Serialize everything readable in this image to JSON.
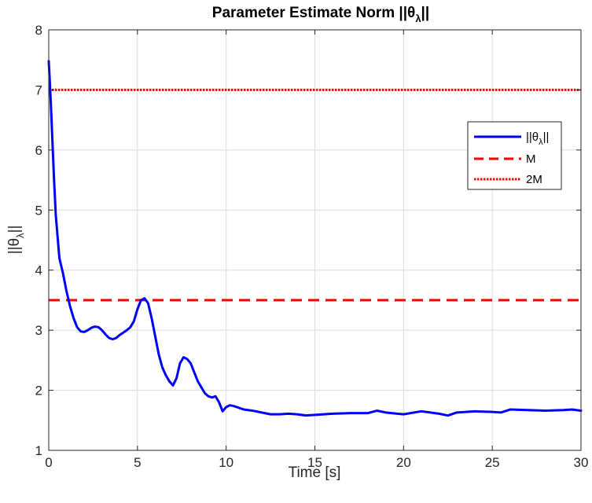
{
  "chart_data": {
    "type": "line",
    "title_main": "Parameter Estimate Norm ||θ",
    "title_sub": "λ",
    "title_end": "||",
    "xlabel": "Time [s]",
    "ylabel_main": "||θ",
    "ylabel_sub": "λ",
    "ylabel_end": "||",
    "xlim": [
      0,
      30
    ],
    "ylim": [
      1,
      8
    ],
    "xticks": [
      0,
      5,
      10,
      15,
      20,
      25,
      30
    ],
    "yticks": [
      1,
      2,
      3,
      4,
      5,
      6,
      7,
      8
    ],
    "grid": true,
    "legend_position": "upper-right",
    "series": [
      {
        "name_main": "||θ",
        "name_sub": "λ",
        "name_end": "||",
        "style": "solid",
        "color": "#0000ff",
        "x": [
          0,
          0.1,
          0.2,
          0.3,
          0.4,
          0.6,
          0.8,
          1.0,
          1.2,
          1.4,
          1.6,
          1.8,
          2.0,
          2.2,
          2.4,
          2.6,
          2.8,
          3.0,
          3.2,
          3.4,
          3.6,
          3.8,
          4.0,
          4.2,
          4.4,
          4.6,
          4.8,
          5.0,
          5.2,
          5.4,
          5.6,
          5.8,
          6.0,
          6.2,
          6.4,
          6.6,
          6.8,
          7.0,
          7.2,
          7.4,
          7.6,
          7.8,
          8.0,
          8.2,
          8.4,
          8.6,
          8.8,
          9.0,
          9.2,
          9.4,
          9.6,
          9.8,
          10.0,
          10.2,
          10.4,
          10.6,
          10.8,
          11.0,
          11.5,
          12.0,
          12.5,
          13.0,
          13.5,
          14.0,
          14.5,
          15.0,
          16.0,
          17.0,
          18.0,
          18.5,
          19.0,
          20.0,
          21.0,
          22.0,
          22.5,
          23.0,
          24.0,
          25.0,
          25.5,
          26.0,
          27.0,
          28.0,
          29.0,
          29.5,
          30.0
        ],
        "y": [
          7.48,
          6.9,
          6.2,
          5.5,
          4.9,
          4.2,
          3.95,
          3.65,
          3.4,
          3.2,
          3.05,
          2.98,
          2.97,
          3.0,
          3.04,
          3.06,
          3.05,
          3.0,
          2.93,
          2.87,
          2.85,
          2.87,
          2.92,
          2.96,
          3.0,
          3.05,
          3.15,
          3.35,
          3.5,
          3.53,
          3.45,
          3.2,
          2.9,
          2.6,
          2.38,
          2.25,
          2.15,
          2.08,
          2.2,
          2.45,
          2.55,
          2.52,
          2.45,
          2.3,
          2.15,
          2.05,
          1.95,
          1.9,
          1.88,
          1.9,
          1.8,
          1.65,
          1.72,
          1.75,
          1.74,
          1.72,
          1.7,
          1.68,
          1.66,
          1.63,
          1.6,
          1.6,
          1.61,
          1.6,
          1.58,
          1.59,
          1.61,
          1.62,
          1.62,
          1.66,
          1.63,
          1.6,
          1.65,
          1.61,
          1.58,
          1.63,
          1.65,
          1.64,
          1.63,
          1.68,
          1.67,
          1.66,
          1.67,
          1.68,
          1.66
        ]
      },
      {
        "name": "M",
        "style": "dashed",
        "color": "#ff0000",
        "x": [
          0,
          30
        ],
        "y": [
          3.5,
          3.5
        ]
      },
      {
        "name": "2M",
        "style": "dotted",
        "color": "#ff0000",
        "x": [
          0,
          30
        ],
        "y": [
          7.0,
          7.0
        ]
      }
    ]
  }
}
